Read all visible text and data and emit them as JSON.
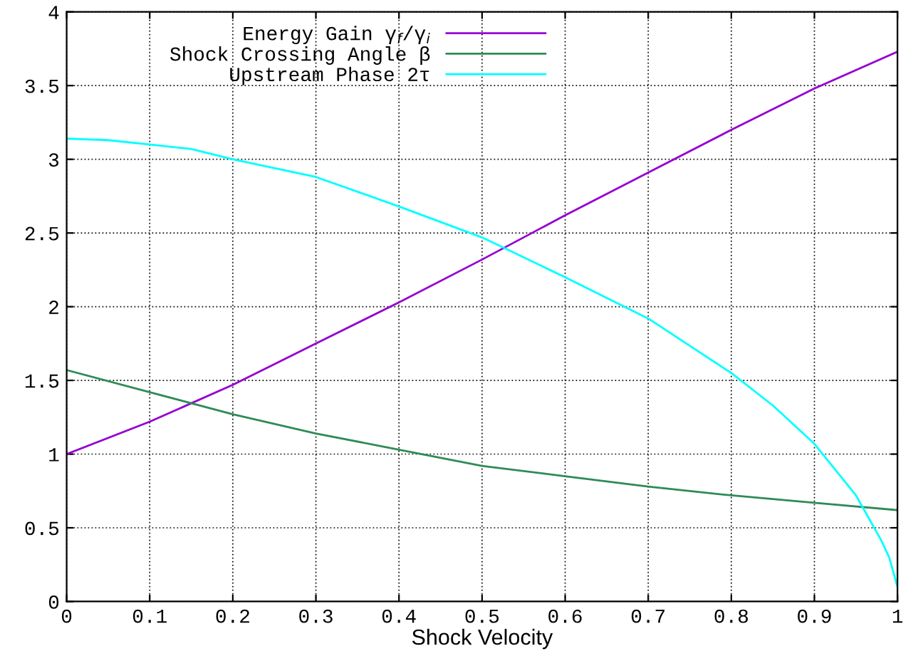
{
  "chart_data": {
    "type": "line",
    "xlabel": "Shock Velocity",
    "xlim": [
      0,
      1
    ],
    "xticks": [
      0,
      0.1,
      0.2,
      0.3,
      0.4,
      0.5,
      0.6,
      0.7,
      0.8,
      0.9,
      1
    ],
    "ylim": [
      0,
      4
    ],
    "yticks": [
      0,
      0.5,
      1,
      1.5,
      2,
      2.5,
      3,
      3.5,
      4
    ],
    "grid": true,
    "legend": "top",
    "marker": "none",
    "line_style": "solid",
    "series": [
      {
        "name": "Energy Gain γ$_{f}$/γ$_{i}$",
        "color": "#9400d3",
        "x": [
          0,
          0.1,
          0.2,
          0.3,
          0.4,
          0.5,
          0.6,
          0.7,
          0.8,
          0.9,
          1
        ],
        "values": [
          1.0,
          1.22,
          1.47,
          1.75,
          2.03,
          2.32,
          2.62,
          2.91,
          3.2,
          3.48,
          3.73
        ]
      },
      {
        "name": "Shock Crossing Angle β",
        "color": "#2e8b57",
        "x": [
          0,
          0.1,
          0.2,
          0.3,
          0.4,
          0.5,
          0.6,
          0.7,
          0.8,
          0.9,
          1
        ],
        "values": [
          1.57,
          1.42,
          1.27,
          1.14,
          1.03,
          0.92,
          0.85,
          0.78,
          0.72,
          0.67,
          0.62
        ]
      },
      {
        "name": "Upstream Phase 2τ",
        "color": "#00ffff",
        "x": [
          0,
          0.05,
          0.1,
          0.15,
          0.2,
          0.3,
          0.4,
          0.5,
          0.6,
          0.7,
          0.8,
          0.85,
          0.9,
          0.95,
          0.98,
          0.99,
          1
        ],
        "values": [
          3.14,
          3.13,
          3.1,
          3.07,
          3.0,
          2.88,
          2.68,
          2.47,
          2.2,
          1.92,
          1.55,
          1.33,
          1.07,
          0.72,
          0.42,
          0.3,
          0.1
        ]
      }
    ]
  }
}
